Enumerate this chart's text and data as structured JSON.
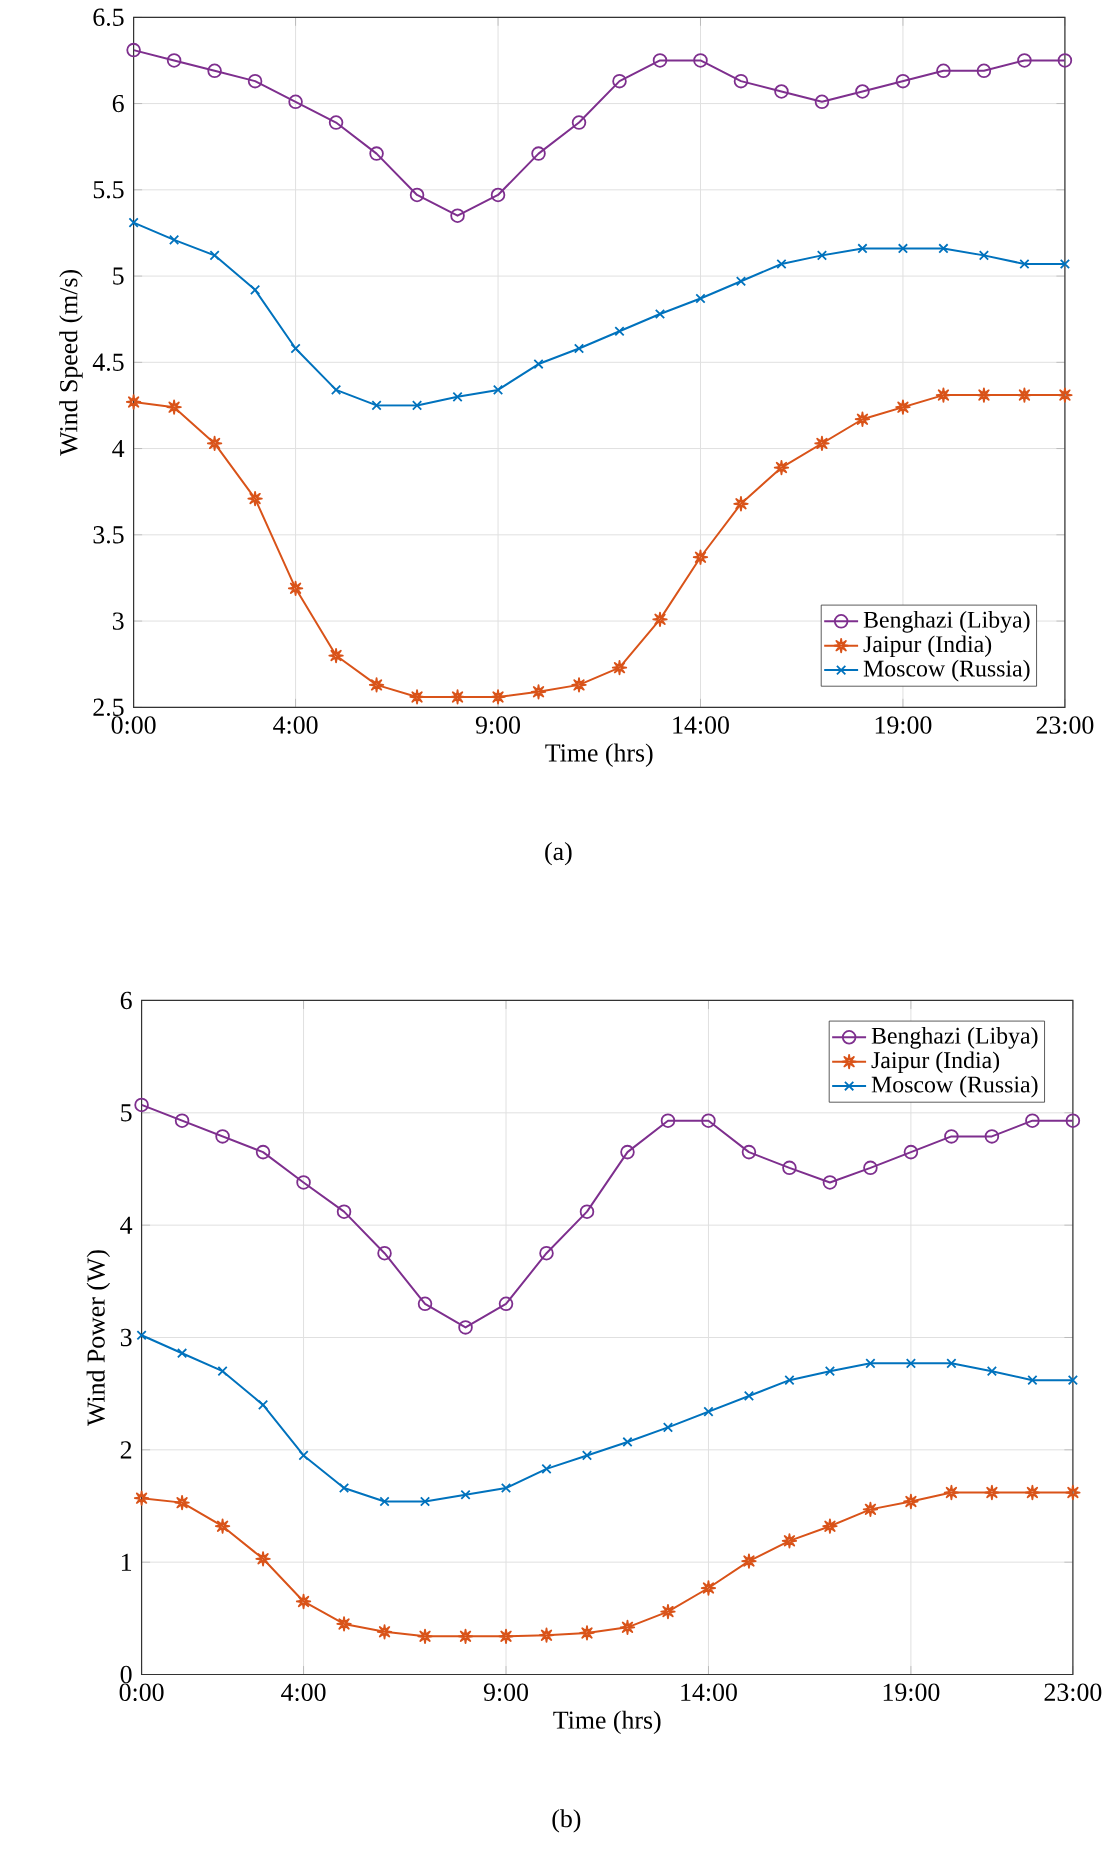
{
  "chart_data": [
    {
      "type": "line",
      "ylabel": "Wind Speed (m/s)",
      "xlabel": "Time (hrs)",
      "annotations": [
        "(a)"
      ],
      "x": [
        0,
        1,
        2,
        3,
        4,
        5,
        6,
        7,
        8,
        9,
        10,
        11,
        12,
        13,
        14,
        15,
        16,
        17,
        18,
        19,
        20,
        21,
        22,
        23
      ],
      "xlim": [
        0,
        23
      ],
      "xticks": [
        {
          "value": 0,
          "label": "0:00"
        },
        {
          "value": 4,
          "label": "4:00"
        },
        {
          "value": 9,
          "label": "9:00"
        },
        {
          "value": 14,
          "label": "14:00"
        },
        {
          "value": 19,
          "label": "19:00"
        },
        {
          "value": 23,
          "label": "23:00"
        }
      ],
      "ylim": [
        2.5,
        6.5
      ],
      "yticks": [
        2.5,
        3,
        3.5,
        4,
        4.5,
        5,
        5.5,
        6,
        6.5
      ],
      "grid": true,
      "legend": "bottom right",
      "series": [
        {
          "name": "Benghazi (Libya)",
          "color": "#7e2f8e",
          "marker": "circle",
          "values": [
            6.31,
            6.25,
            6.19,
            6.13,
            6.01,
            5.89,
            5.71,
            5.47,
            5.35,
            5.47,
            5.71,
            5.89,
            6.13,
            6.25,
            6.25,
            6.13,
            6.07,
            6.01,
            6.07,
            6.13,
            6.19,
            6.19,
            6.25,
            6.25
          ]
        },
        {
          "name": "Jaipur (India)",
          "color": "#d95319",
          "marker": "star",
          "values": [
            4.27,
            4.24,
            4.03,
            3.71,
            3.19,
            2.8,
            2.63,
            2.56,
            2.56,
            2.56,
            2.59,
            2.63,
            2.73,
            3.01,
            3.37,
            3.68,
            3.89,
            4.03,
            4.17,
            4.24,
            4.31,
            4.31,
            4.31,
            4.31
          ]
        },
        {
          "name": "Moscow (Russia)",
          "color": "#0072bd",
          "marker": "cross",
          "values": [
            5.31,
            5.21,
            5.12,
            4.92,
            4.58,
            4.34,
            4.25,
            4.25,
            4.3,
            4.34,
            4.49,
            4.58,
            4.68,
            4.78,
            4.87,
            4.97,
            5.07,
            5.12,
            5.16,
            5.16,
            5.16,
            5.12,
            5.07,
            5.07
          ]
        }
      ]
    },
    {
      "type": "line",
      "ylabel": "Wind Power (W)",
      "xlabel": "Time (hrs)",
      "annotations": [
        "(b)"
      ],
      "x": [
        0,
        1,
        2,
        3,
        4,
        5,
        6,
        7,
        8,
        9,
        10,
        11,
        12,
        13,
        14,
        15,
        16,
        17,
        18,
        19,
        20,
        21,
        22,
        23
      ],
      "xlim": [
        0,
        23
      ],
      "xticks": [
        {
          "value": 0,
          "label": "0:00"
        },
        {
          "value": 4,
          "label": "4:00"
        },
        {
          "value": 9,
          "label": "9:00"
        },
        {
          "value": 14,
          "label": "14:00"
        },
        {
          "value": 19,
          "label": "19:00"
        },
        {
          "value": 23,
          "label": "23:00"
        }
      ],
      "ylim": [
        0,
        6
      ],
      "yticks": [
        0,
        1,
        2,
        3,
        4,
        5,
        6
      ],
      "grid": true,
      "legend": "top right",
      "series": [
        {
          "name": "Benghazi (Libya)",
          "color": "#7e2f8e",
          "marker": "circle",
          "values": [
            5.07,
            4.93,
            4.79,
            4.65,
            4.38,
            4.12,
            3.75,
            3.3,
            3.09,
            3.3,
            3.75,
            4.12,
            4.65,
            4.93,
            4.93,
            4.65,
            4.51,
            4.38,
            4.51,
            4.65,
            4.79,
            4.79,
            4.93,
            4.93
          ]
        },
        {
          "name": "Jaipur (India)",
          "color": "#d95319",
          "marker": "star",
          "values": [
            1.57,
            1.53,
            1.32,
            1.03,
            0.65,
            0.45,
            0.38,
            0.34,
            0.34,
            0.34,
            0.35,
            0.37,
            0.42,
            0.56,
            0.77,
            1.01,
            1.19,
            1.32,
            1.47,
            1.54,
            1.62,
            1.62,
            1.62,
            1.62
          ]
        },
        {
          "name": "Moscow (Russia)",
          "color": "#0072bd",
          "marker": "cross",
          "values": [
            3.02,
            2.86,
            2.7,
            2.4,
            1.95,
            1.66,
            1.54,
            1.54,
            1.6,
            1.66,
            1.83,
            1.95,
            2.07,
            2.2,
            2.34,
            2.48,
            2.62,
            2.7,
            2.77,
            2.77,
            2.77,
            2.7,
            2.62,
            2.62
          ]
        }
      ]
    }
  ]
}
